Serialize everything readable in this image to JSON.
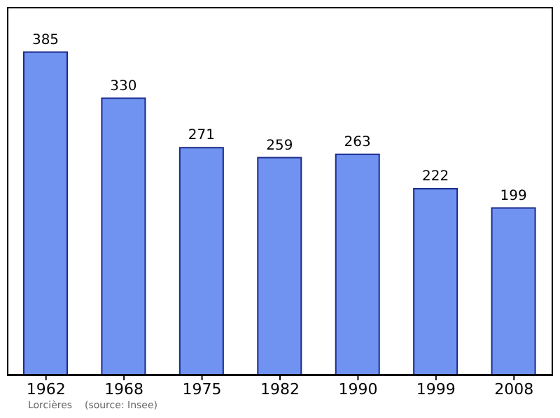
{
  "chart_data": {
    "type": "bar",
    "categories": [
      "1962",
      "1968",
      "1975",
      "1982",
      "1990",
      "1999",
      "2008"
    ],
    "values": [
      385,
      330,
      271,
      259,
      263,
      222,
      199
    ],
    "color": "#7093f2",
    "data_labels": true,
    "tick_labels": "x",
    "annotations": [
      "Lorcières    (source: Insee)"
    ]
  }
}
